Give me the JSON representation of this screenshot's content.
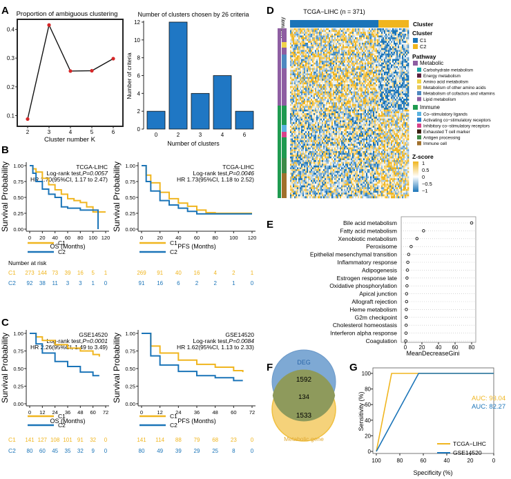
{
  "panels": {
    "A": "A",
    "B": "B",
    "C": "C",
    "D": "D",
    "E": "E",
    "F": "F",
    "G": "G"
  },
  "colors": {
    "c1": "#f0b51e",
    "c2": "#1a74b8",
    "bar": "#1f77c4",
    "red": "#d62728",
    "deg": "#7ea9d4",
    "meta": "#f5d27a",
    "overlap": "#8e9a5c"
  },
  "panelA": {
    "left": {
      "title": "Proportion of ambiguous clustering",
      "xlabel": "Cluster number K",
      "xticks": [
        "2",
        "3",
        "4",
        "5",
        "6"
      ],
      "yticks": [
        "0.1",
        "0.2",
        "0.3",
        "0.4"
      ]
    },
    "right": {
      "title": "Number of clusters chosen by 26 criteria",
      "xlabel": "Number of clusters",
      "ylabel": "Number of criteria",
      "yticks": [
        "0",
        "2",
        "4",
        "6",
        "8",
        "10",
        "12"
      ]
    }
  },
  "chart_data": [
    {
      "id": "ambiguous",
      "type": "line",
      "title": "Proportion of ambiguous clustering",
      "xlabel": "Cluster number K",
      "x": [
        2,
        3,
        4,
        5,
        6
      ],
      "y": [
        0.088,
        0.415,
        0.255,
        0.256,
        0.298
      ],
      "ylim": [
        0.07,
        0.43
      ]
    },
    {
      "id": "criteria",
      "type": "bar",
      "title": "Number of clusters chosen by 26 criteria",
      "xlabel": "Number of clusters",
      "ylabel": "Number of criteria",
      "categories": [
        "0",
        "2",
        "3",
        "4",
        "6"
      ],
      "values": [
        2,
        12,
        4,
        6,
        2
      ],
      "ylim": [
        0,
        12
      ]
    },
    {
      "id": "importance",
      "type": "scatter",
      "xlabel": "MeanDecreaseGini",
      "categories": [
        "Bile acid metabolism",
        "Fatty acid metabolism",
        "Xenobiotic metabolism",
        "Peroxisome",
        "Epithelial mesenchymal transition",
        "Inflammatory response",
        "Adipogenesis",
        "Estrogen response late",
        "Oxidative phosphorylation",
        "Apical junction",
        "Allograft rejection",
        "Heme metabolism",
        "G2m checkpoint",
        "Cholesterol homeostasis",
        "Interferon alpha response",
        "Coagulation"
      ],
      "values": [
        80,
        22,
        14,
        7,
        4,
        3,
        2.5,
        2,
        2,
        1.5,
        1.5,
        1.2,
        1,
        1,
        0.8,
        0.5
      ],
      "xticks": [
        "0",
        "20",
        "40",
        "60",
        "80"
      ],
      "xlim": [
        0,
        80
      ]
    },
    {
      "id": "roc",
      "type": "line",
      "xlabel": "Specificity (%)",
      "ylabel": "Sensitivity (%)",
      "series": [
        {
          "name": "TCGA−LIHC",
          "auc": "AUC: 93.04",
          "spec": [
            100,
            87,
            0
          ],
          "sens": [
            0,
            100,
            100
          ]
        },
        {
          "name": "GSE14520",
          "auc": "AUC: 82.27",
          "spec": [
            100,
            64,
            0
          ],
          "sens": [
            0,
            100,
            100
          ]
        }
      ],
      "xticks": [
        "100",
        "80",
        "60",
        "40",
        "20",
        "0"
      ],
      "yticks": [
        "0",
        "20",
        "40",
        "60",
        "80",
        "100"
      ]
    }
  ],
  "km": {
    "ylabel": "Survival Probability",
    "yticks": [
      "0.00",
      "0.25",
      "0.50",
      "0.75",
      "1.00"
    ],
    "legend": [
      "C1",
      "C2"
    ],
    "risk_title": "Number at risk",
    "panels": [
      {
        "id": "B-os",
        "dataset": "TCGA-LIHC",
        "logrank": "Log-rank test,",
        "pval": "P=0.0057",
        "hr": "HR 1.70(95%CI, 1.17 to 2.47)",
        "xlabel": "OS (Months)",
        "xticks": [
          "0",
          "20",
          "40",
          "60",
          "80",
          "100",
          "120"
        ],
        "xmax": 120,
        "c1": [
          [
            0,
            1
          ],
          [
            5,
            0.95
          ],
          [
            10,
            0.9
          ],
          [
            20,
            0.8
          ],
          [
            30,
            0.7
          ],
          [
            40,
            0.62
          ],
          [
            50,
            0.55
          ],
          [
            60,
            0.48
          ],
          [
            70,
            0.45
          ],
          [
            80,
            0.42
          ],
          [
            90,
            0.35
          ],
          [
            100,
            0.27
          ],
          [
            110,
            0.27
          ],
          [
            120,
            0.27
          ]
        ],
        "c2": [
          [
            0,
            1
          ],
          [
            5,
            0.88
          ],
          [
            10,
            0.75
          ],
          [
            20,
            0.63
          ],
          [
            30,
            0.55
          ],
          [
            40,
            0.5
          ],
          [
            50,
            0.35
          ],
          [
            60,
            0.33
          ],
          [
            70,
            0.33
          ],
          [
            80,
            0.3
          ],
          [
            100,
            0.3
          ],
          [
            108,
            0
          ]
        ],
        "risk_c1": [
          "273",
          "144",
          "73",
          "39",
          "16",
          "5",
          "1"
        ],
        "risk_c2": [
          "92",
          "38",
          "11",
          "3",
          "3",
          "1",
          "0"
        ]
      },
      {
        "id": "B-pfs",
        "dataset": "TCGA-LIHC",
        "logrank": "Log-rank test,",
        "pval": "P=0.0046",
        "hr": "HR 1.73(95%CI, 1.18 to 2.52)",
        "xlabel": "PFS (Months)",
        "xticks": [
          "0",
          "20",
          "40",
          "60",
          "80",
          "100",
          "120"
        ],
        "xmax": 120,
        "c1": [
          [
            0,
            1
          ],
          [
            5,
            0.85
          ],
          [
            10,
            0.73
          ],
          [
            20,
            0.58
          ],
          [
            30,
            0.48
          ],
          [
            40,
            0.41
          ],
          [
            50,
            0.36
          ],
          [
            60,
            0.3
          ],
          [
            70,
            0.26
          ],
          [
            80,
            0.25
          ],
          [
            100,
            0.25
          ],
          [
            120,
            0.25
          ]
        ],
        "c2": [
          [
            0,
            1
          ],
          [
            5,
            0.75
          ],
          [
            10,
            0.6
          ],
          [
            20,
            0.45
          ],
          [
            30,
            0.38
          ],
          [
            40,
            0.33
          ],
          [
            50,
            0.28
          ],
          [
            60,
            0.24
          ],
          [
            80,
            0.24
          ],
          [
            120,
            0.24
          ]
        ],
        "risk_c1": [
          "269",
          "91",
          "40",
          "16",
          "4",
          "2",
          "1"
        ],
        "risk_c2": [
          "91",
          "16",
          "6",
          "2",
          "2",
          "1",
          "0"
        ]
      },
      {
        "id": "C-os",
        "dataset": "GSE14520",
        "logrank": "Log-rank test,",
        "pval": "P=0.0001",
        "hr": "HR 2.26(95%CI, 1.49 to 3.49)",
        "xlabel": "OS (Months)",
        "xticks": [
          "0",
          "12",
          "24",
          "36",
          "48",
          "60",
          "72"
        ],
        "xmax": 72,
        "c1": [
          [
            0,
            1
          ],
          [
            6,
            0.95
          ],
          [
            12,
            0.9
          ],
          [
            24,
            0.84
          ],
          [
            36,
            0.79
          ],
          [
            48,
            0.75
          ],
          [
            60,
            0.7
          ],
          [
            66,
            0.67
          ]
        ],
        "c2": [
          [
            0,
            1
          ],
          [
            6,
            0.85
          ],
          [
            12,
            0.72
          ],
          [
            24,
            0.6
          ],
          [
            36,
            0.53
          ],
          [
            48,
            0.45
          ],
          [
            60,
            0.4
          ],
          [
            66,
            0.4
          ]
        ],
        "risk_c1": [
          "141",
          "127",
          "108",
          "101",
          "91",
          "32",
          "0"
        ],
        "risk_c2": [
          "80",
          "60",
          "45",
          "35",
          "32",
          "9",
          "0"
        ]
      },
      {
        "id": "C-pfs",
        "dataset": "GSE14520",
        "logrank": "Log-rank test,",
        "pval": "P=0.0084",
        "hr": "HR 1.62(95%CI, 1.13 to 2.33)",
        "xlabel": "PFS (Months)",
        "xticks": [
          "0",
          "12",
          "24",
          "36",
          "48",
          "60",
          "72"
        ],
        "xmax": 72,
        "c1": [
          [
            0,
            1
          ],
          [
            6,
            0.82
          ],
          [
            12,
            0.72
          ],
          [
            24,
            0.62
          ],
          [
            36,
            0.56
          ],
          [
            48,
            0.52
          ],
          [
            60,
            0.47
          ],
          [
            66,
            0.45
          ]
        ],
        "c2": [
          [
            0,
            1
          ],
          [
            6,
            0.68
          ],
          [
            12,
            0.55
          ],
          [
            24,
            0.46
          ],
          [
            36,
            0.4
          ],
          [
            48,
            0.37
          ],
          [
            60,
            0.33
          ],
          [
            66,
            0.33
          ]
        ],
        "risk_c1": [
          "141",
          "114",
          "88",
          "79",
          "68",
          "23",
          "0"
        ],
        "risk_c2": [
          "80",
          "49",
          "39",
          "29",
          "25",
          "8",
          "0"
        ]
      }
    ]
  },
  "heatmap": {
    "title": "TCGA−LIHC (n = 371)",
    "pathway_label": "Pathway",
    "cluster_head": "Cluster",
    "legend_cluster_head": "Cluster",
    "clusters": [
      "C1",
      "C2"
    ],
    "pathway_head": "Pathway",
    "metabolic": "Metabolic",
    "metabolic_items": [
      "Carbohydrate metabolism",
      "Energy metabolism",
      "Amino acid metabolism",
      "Metabolism of other amino acids",
      "Metabolism of cofactors and vitamins",
      "Lipid metabolism"
    ],
    "immune": "Immune",
    "immune_items": [
      "Co−stimulatory ligands",
      "Activating co−stimulatory receptors",
      "Inhibitory co−stimulatory receptors",
      "Exhausted T cell marker",
      "Antigen processing",
      "Immune cell"
    ],
    "zscore_head": "Z-score",
    "zticks": [
      "1",
      "0.5",
      "0",
      "−0.5",
      "−1"
    ]
  },
  "venn": {
    "deg": "DEG",
    "deg_only": "1592",
    "overlap": "134",
    "meta_only": "1533",
    "meta": "Metabolic gene"
  }
}
